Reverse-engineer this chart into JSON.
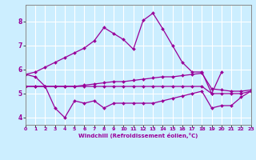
{
  "background_color": "#cceeff",
  "grid_color": "#ffffff",
  "line_color": "#990099",
  "x_label": "Windchill (Refroidissement éolien,°C)",
  "x_ticks": [
    0,
    1,
    2,
    3,
    4,
    5,
    6,
    7,
    8,
    9,
    10,
    11,
    12,
    13,
    14,
    15,
    16,
    17,
    18,
    19,
    20,
    21,
    22,
    23
  ],
  "y_ticks": [
    4,
    5,
    6,
    7,
    8
  ],
  "ylim": [
    3.7,
    8.7
  ],
  "xlim": [
    0,
    23
  ],
  "series": [
    {
      "x": [
        0,
        1,
        2,
        3,
        4,
        5,
        6,
        7,
        8,
        9,
        10,
        11,
        12,
        13,
        14,
        15,
        16,
        17,
        18,
        19,
        20
      ],
      "y": [
        5.8,
        5.9,
        6.1,
        6.3,
        6.5,
        6.7,
        6.9,
        7.2,
        7.75,
        7.5,
        7.25,
        6.85,
        8.05,
        8.35,
        7.7,
        7.0,
        6.3,
        5.9,
        5.9,
        5.0,
        5.9
      ]
    },
    {
      "x": [
        0,
        1,
        2,
        3,
        4,
        5,
        6,
        7,
        8,
        9,
        10,
        11,
        12,
        13,
        14,
        15,
        16,
        17,
        18,
        19,
        20,
        21,
        22,
        23
      ],
      "y": [
        5.3,
        5.3,
        5.3,
        5.3,
        5.3,
        5.3,
        5.35,
        5.4,
        5.45,
        5.5,
        5.5,
        5.55,
        5.6,
        5.65,
        5.7,
        5.7,
        5.75,
        5.8,
        5.85,
        5.2,
        5.15,
        5.1,
        5.1,
        5.15
      ]
    },
    {
      "x": [
        0,
        1,
        2,
        3,
        4,
        5,
        6,
        7,
        8,
        9,
        10,
        11,
        12,
        13,
        14,
        15,
        16,
        17,
        18,
        19,
        20,
        21,
        22,
        23
      ],
      "y": [
        5.3,
        5.3,
        5.3,
        5.3,
        5.3,
        5.3,
        5.3,
        5.3,
        5.3,
        5.3,
        5.3,
        5.3,
        5.3,
        5.3,
        5.3,
        5.3,
        5.3,
        5.3,
        5.3,
        5.0,
        5.0,
        5.0,
        5.0,
        5.1
      ]
    },
    {
      "x": [
        0,
        1,
        2,
        3,
        4,
        5,
        6,
        7,
        8,
        9,
        10,
        11,
        12,
        13,
        14,
        15,
        16,
        17,
        18,
        19,
        20,
        21,
        22,
        23
      ],
      "y": [
        5.8,
        5.7,
        5.3,
        4.4,
        4.0,
        4.7,
        4.6,
        4.7,
        4.4,
        4.6,
        4.6,
        4.6,
        4.6,
        4.6,
        4.7,
        4.8,
        4.9,
        5.0,
        5.1,
        4.4,
        4.5,
        4.5,
        4.85,
        5.1
      ]
    }
  ]
}
